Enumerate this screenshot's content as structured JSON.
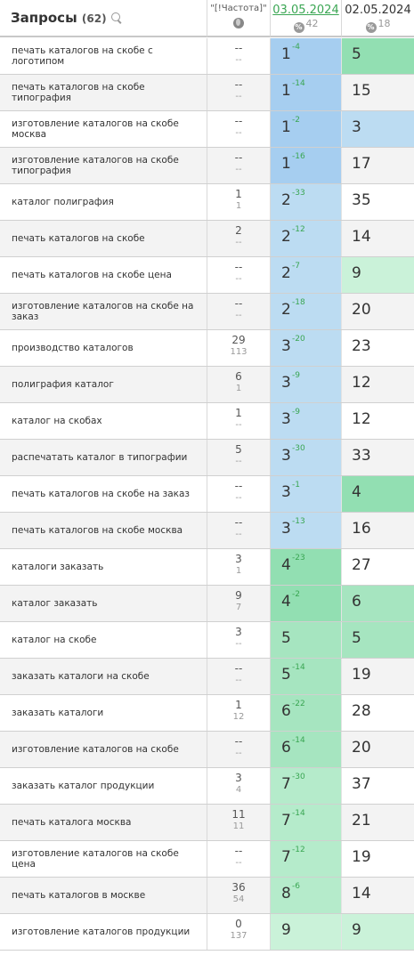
{
  "header": {
    "queries_label": "Запросы",
    "queries_count": "(62)",
    "freq_label": "\"[!Частота]\"",
    "date1": "03.05.2024",
    "date1_count": "42",
    "date2": "02.05.2024",
    "date2_count": "18",
    "pct_symbol": "%"
  },
  "colors": {
    "blue_strong": "#a6cef0",
    "blue_light": "#bcdcf2",
    "green_strong": "#92dfb2",
    "green_light": "#b5ebcb",
    "green_pale": "#caf2d9"
  },
  "rows": [
    {
      "q": "печать каталогов на скобе с логотипом",
      "f1": "--",
      "f2": "--",
      "p1": "1",
      "d": "-4",
      "p2": "5",
      "c1": "#a6cef0",
      "c2": "#92dfb2"
    },
    {
      "q": "печать каталогов на скобе типография",
      "f1": "--",
      "f2": "--",
      "p1": "1",
      "d": "-14",
      "p2": "15",
      "c1": "#a6cef0",
      "c2": ""
    },
    {
      "q": "изготовление каталогов на скобе москва",
      "f1": "--",
      "f2": "--",
      "p1": "1",
      "d": "-2",
      "p2": "3",
      "c1": "#a6cef0",
      "c2": "#bcdcf2"
    },
    {
      "q": "изготовление каталогов на скобе типография",
      "f1": "--",
      "f2": "--",
      "p1": "1",
      "d": "-16",
      "p2": "17",
      "c1": "#a6cef0",
      "c2": ""
    },
    {
      "q": "каталог полиграфия",
      "f1": "1",
      "f2": "1",
      "p1": "2",
      "d": "-33",
      "p2": "35",
      "c1": "#bcdcf2",
      "c2": ""
    },
    {
      "q": "печать каталогов на скобе",
      "f1": "2",
      "f2": "--",
      "p1": "2",
      "d": "-12",
      "p2": "14",
      "c1": "#bcdcf2",
      "c2": ""
    },
    {
      "q": "печать каталогов на скобе цена",
      "f1": "--",
      "f2": "--",
      "p1": "2",
      "d": "-7",
      "p2": "9",
      "c1": "#bcdcf2",
      "c2": "#caf2d9"
    },
    {
      "q": "изготовление каталогов на скобе на заказ",
      "f1": "--",
      "f2": "--",
      "p1": "2",
      "d": "-18",
      "p2": "20",
      "c1": "#bcdcf2",
      "c2": ""
    },
    {
      "q": "производство каталогов",
      "f1": "29",
      "f2": "113",
      "p1": "3",
      "d": "-20",
      "p2": "23",
      "c1": "#bcdcf2",
      "c2": ""
    },
    {
      "q": "полиграфия каталог",
      "f1": "6",
      "f2": "1",
      "p1": "3",
      "d": "-9",
      "p2": "12",
      "c1": "#bcdcf2",
      "c2": ""
    },
    {
      "q": "каталог на скобах",
      "f1": "1",
      "f2": "--",
      "p1": "3",
      "d": "-9",
      "p2": "12",
      "c1": "#bcdcf2",
      "c2": ""
    },
    {
      "q": "распечатать каталог в типографии",
      "f1": "5",
      "f2": "--",
      "p1": "3",
      "d": "-30",
      "p2": "33",
      "c1": "#bcdcf2",
      "c2": ""
    },
    {
      "q": "печать каталогов на скобе на заказ",
      "f1": "--",
      "f2": "--",
      "p1": "3",
      "d": "-1",
      "p2": "4",
      "c1": "#bcdcf2",
      "c2": "#92dfb2"
    },
    {
      "q": "печать каталогов на скобе москва",
      "f1": "--",
      "f2": "--",
      "p1": "3",
      "d": "-13",
      "p2": "16",
      "c1": "#bcdcf2",
      "c2": ""
    },
    {
      "q": "каталоги заказать",
      "f1": "3",
      "f2": "1",
      "p1": "4",
      "d": "-23",
      "p2": "27",
      "c1": "#92dfb2",
      "c2": ""
    },
    {
      "q": "каталог заказать",
      "f1": "9",
      "f2": "7",
      "p1": "4",
      "d": "-2",
      "p2": "6",
      "c1": "#92dfb2",
      "c2": "#a6e5c0"
    },
    {
      "q": "каталог на скобе",
      "f1": "3",
      "f2": "--",
      "p1": "5",
      "d": "",
      "p2": "5",
      "c1": "#a6e5c0",
      "c2": "#a6e5c0"
    },
    {
      "q": "заказать каталоги на скобе",
      "f1": "--",
      "f2": "--",
      "p1": "5",
      "d": "-14",
      "p2": "19",
      "c1": "#a6e5c0",
      "c2": ""
    },
    {
      "q": "заказать каталоги",
      "f1": "1",
      "f2": "12",
      "p1": "6",
      "d": "-22",
      "p2": "28",
      "c1": "#a6e5c0",
      "c2": ""
    },
    {
      "q": "изготовление каталогов на скобе",
      "f1": "--",
      "f2": "--",
      "p1": "6",
      "d": "-14",
      "p2": "20",
      "c1": "#a6e5c0",
      "c2": ""
    },
    {
      "q": "заказать каталог продукции",
      "f1": "3",
      "f2": "4",
      "p1": "7",
      "d": "-30",
      "p2": "37",
      "c1": "#b5ebcb",
      "c2": ""
    },
    {
      "q": "печать каталога москва",
      "f1": "11",
      "f2": "11",
      "p1": "7",
      "d": "-14",
      "p2": "21",
      "c1": "#b5ebcb",
      "c2": ""
    },
    {
      "q": "изготовление каталогов на скобе цена",
      "f1": "--",
      "f2": "--",
      "p1": "7",
      "d": "-12",
      "p2": "19",
      "c1": "#b5ebcb",
      "c2": ""
    },
    {
      "q": "печать каталогов в москве",
      "f1": "36",
      "f2": "54",
      "p1": "8",
      "d": "-6",
      "p2": "14",
      "c1": "#b5ebcb",
      "c2": ""
    },
    {
      "q": "изготовление каталогов продукции",
      "f1": "0",
      "f2": "137",
      "p1": "9",
      "d": "",
      "p2": "9",
      "c1": "#caf2d9",
      "c2": "#caf2d9"
    }
  ]
}
